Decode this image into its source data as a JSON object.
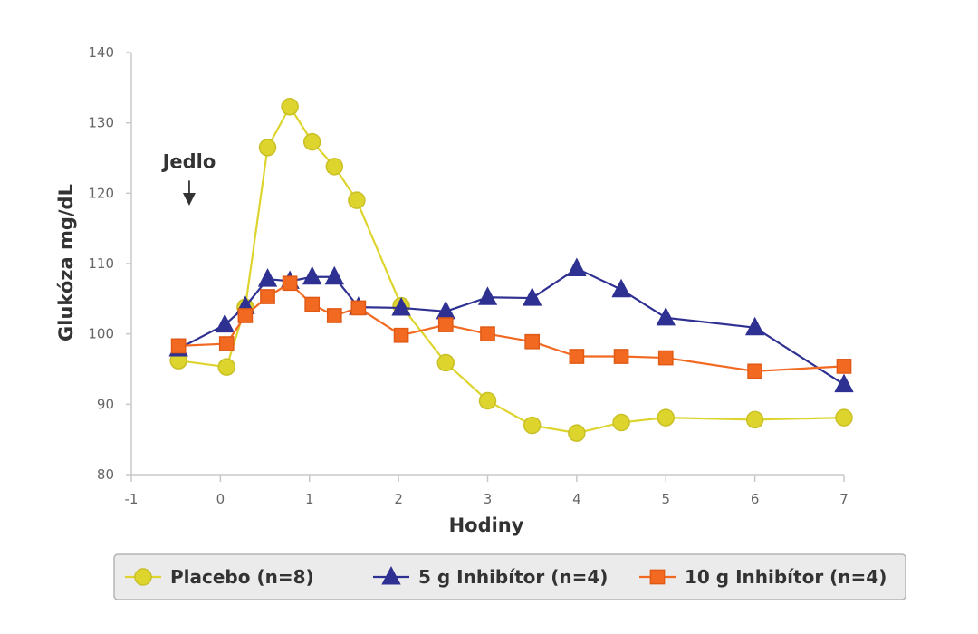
{
  "chart_data": {
    "type": "line",
    "xlabel": "Hodiny",
    "ylabel": "Glukóza  mg/dL",
    "xlim": [
      -1,
      7
    ],
    "ylim": [
      80,
      140
    ],
    "x_ticks": [
      -1,
      0,
      1,
      2,
      3,
      4,
      5,
      6,
      7
    ],
    "x_tick_labels": [
      "-1",
      "0",
      "1",
      "2",
      "3",
      "4",
      "5",
      "6",
      "7"
    ],
    "y_ticks": [
      80,
      90,
      100,
      110,
      120,
      130,
      140
    ],
    "y_tick_labels": [
      "80",
      "90",
      "100",
      "110",
      "120",
      "130",
      "140"
    ],
    "grid": false,
    "legend_position": "bottom",
    "annotation": {
      "text": "Jedlo",
      "x": -0.35,
      "y": 124.5,
      "arrow_to_y": 118.5
    },
    "series": [
      {
        "name": "Placebo (n=8)",
        "marker": "circle",
        "color": "#DDD42E",
        "edge_color": "#C9C026",
        "points": [
          [
            -0.47,
            96.2
          ],
          [
            0.07,
            95.3
          ],
          [
            0.28,
            103.8
          ],
          [
            0.53,
            126.5
          ],
          [
            0.78,
            132.3
          ],
          [
            1.03,
            127.3
          ],
          [
            1.28,
            123.8
          ],
          [
            1.53,
            119.0
          ],
          [
            2.03,
            104.0
          ],
          [
            2.53,
            95.9
          ],
          [
            3.0,
            90.5
          ],
          [
            3.5,
            87.0
          ],
          [
            4.0,
            85.9
          ],
          [
            4.5,
            87.4
          ],
          [
            5.0,
            88.1
          ],
          [
            6.0,
            87.8
          ],
          [
            7.0,
            88.1
          ]
        ]
      },
      {
        "name": "5 g  Inhibítor (n=4)",
        "marker": "triangle",
        "color": "#2F3192",
        "edge_color": "#2F3192",
        "points": [
          [
            -0.47,
            97.9
          ],
          [
            0.05,
            101.3
          ],
          [
            0.28,
            103.9
          ],
          [
            0.53,
            107.8
          ],
          [
            0.78,
            107.5
          ],
          [
            1.03,
            108.1
          ],
          [
            1.28,
            108.1
          ],
          [
            1.55,
            103.8
          ],
          [
            2.03,
            103.7
          ],
          [
            2.53,
            103.2
          ],
          [
            3.0,
            105.2
          ],
          [
            3.5,
            105.1
          ],
          [
            4.0,
            109.3
          ],
          [
            4.5,
            106.3
          ],
          [
            5.0,
            102.3
          ],
          [
            6.0,
            100.9
          ],
          [
            7.0,
            92.8
          ]
        ]
      },
      {
        "name": "10 g  Inhibítor (n=4)",
        "marker": "square",
        "color": "#F26A21",
        "edge_color": "#E05A16",
        "points": [
          [
            -0.47,
            98.3
          ],
          [
            0.07,
            98.6
          ],
          [
            0.28,
            102.6
          ],
          [
            0.53,
            105.3
          ],
          [
            0.78,
            107.2
          ],
          [
            1.03,
            104.2
          ],
          [
            1.28,
            102.6
          ],
          [
            1.55,
            103.7
          ],
          [
            2.03,
            99.8
          ],
          [
            2.53,
            101.3
          ],
          [
            3.0,
            100.0
          ],
          [
            3.5,
            98.9
          ],
          [
            4.0,
            96.8
          ],
          [
            4.5,
            96.8
          ],
          [
            5.0,
            96.6
          ],
          [
            6.0,
            94.7
          ],
          [
            7.0,
            95.4
          ]
        ]
      }
    ]
  }
}
